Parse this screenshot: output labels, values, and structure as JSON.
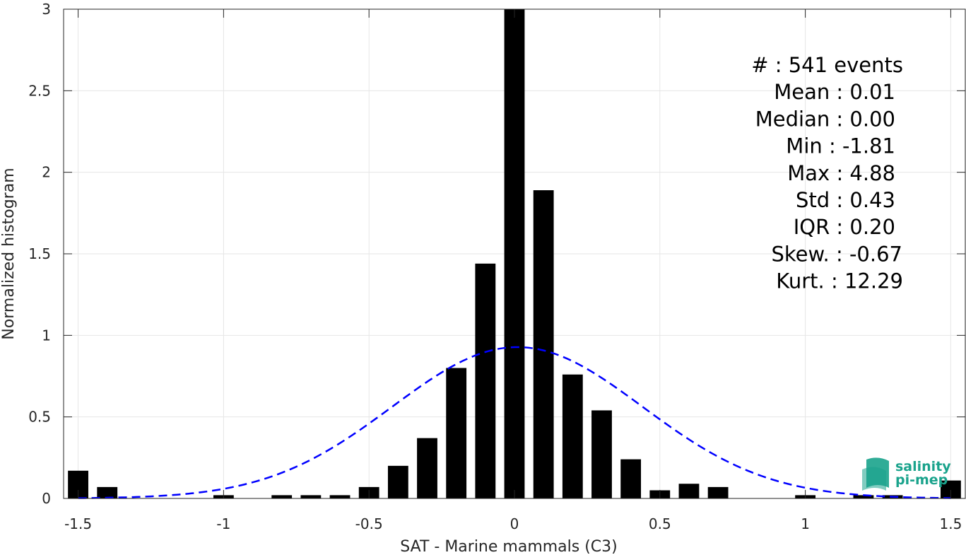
{
  "chart_data": {
    "type": "bar",
    "xlabel": "SAT - Marine mammals (C3)",
    "ylabel": "Normalized histogram",
    "xlim": [
      -1.55,
      1.55
    ],
    "ylim": [
      0,
      3
    ],
    "grid": true,
    "bar_width": 0.07,
    "bar_color": "#000000",
    "xticks": [
      "-1.5",
      "-1",
      "-0.5",
      "0",
      "0.5",
      "1",
      "1.5"
    ],
    "yticks": [
      "0",
      "0.5",
      "1",
      "1.5",
      "2",
      "2.5",
      "3"
    ],
    "x": [
      -1.5,
      -1.4,
      -1.3,
      -1.2,
      -1.1,
      -1.0,
      -0.9,
      -0.8,
      -0.7,
      -0.6,
      -0.5,
      -0.4,
      -0.3,
      -0.2,
      -0.1,
      0.0,
      0.1,
      0.2,
      0.3,
      0.4,
      0.5,
      0.6,
      0.7,
      0.8,
      0.9,
      1.0,
      1.1,
      1.2,
      1.3,
      1.4,
      1.5
    ],
    "values": [
      0.17,
      0.07,
      0,
      0,
      0,
      0.02,
      0,
      0.02,
      0.02,
      0.02,
      0.07,
      0.2,
      0.37,
      0.8,
      1.44,
      3.0,
      1.89,
      0.76,
      0.54,
      0.24,
      0.05,
      0.09,
      0.07,
      0,
      0,
      0.02,
      0,
      0.02,
      0.02,
      0,
      0.11
    ],
    "fit_curve": {
      "style": "dashed",
      "color": "#0000ff",
      "mean": 0.01,
      "std": 0.43
    },
    "stats": [
      "#  : 541 events",
      "Mean : 0.01",
      "Median : 0.00",
      "Min : -1.81",
      "Max : 4.88",
      "Std : 0.43",
      "IQR : 0.20",
      "Skew. : -0.67",
      "Kurt. : 12.29"
    ],
    "logo": {
      "line1": "salinity",
      "line2": "pi-mep",
      "color": "#1aa38c"
    }
  }
}
